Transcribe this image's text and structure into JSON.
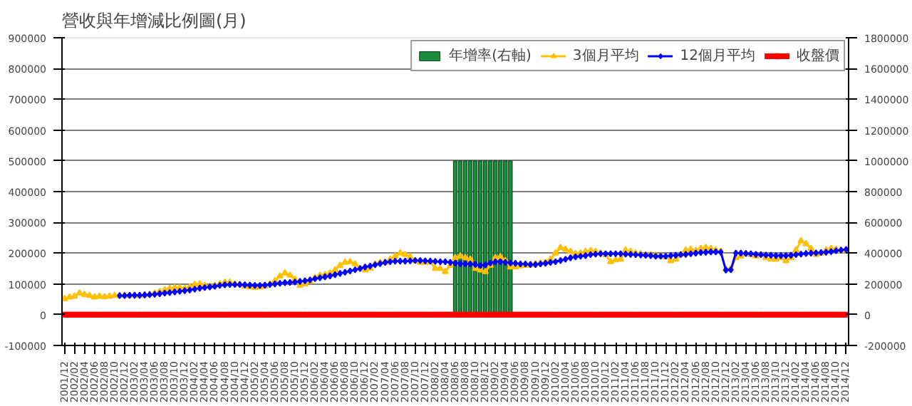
{
  "chart_data": {
    "type": "line",
    "title": "營收與年增減比例圖(月)",
    "categories": [
      "2001/12",
      null,
      "2002/02",
      null,
      "2002/04",
      null,
      "2002/06",
      null,
      "2002/08",
      null,
      "2002/10",
      null,
      "2002/12",
      null,
      "2003/02",
      null,
      "2003/04",
      null,
      "2003/06",
      null,
      "2003/08",
      null,
      "2003/10",
      null,
      "2003/12",
      null,
      "2004/02",
      null,
      "2004/04",
      null,
      "2004/06",
      null,
      "2004/08",
      null,
      "2004/10",
      null,
      "2004/12",
      null,
      "2005/02",
      null,
      "2005/04",
      null,
      "2005/06",
      null,
      "2005/08",
      null,
      "2005/10",
      null,
      "2005/12",
      null,
      "2006/02",
      null,
      "2006/04",
      null,
      "2006/06",
      null,
      "2006/08",
      null,
      "2006/10",
      null,
      "2006/12",
      null,
      "2007/02",
      null,
      "2007/04",
      null,
      "2007/06",
      null,
      "2007/08",
      null,
      "2007/10",
      null,
      "2007/12",
      null,
      "2008/02",
      null,
      "2008/04",
      null,
      "2008/06",
      null,
      "2008/08",
      null,
      "2008/10",
      null,
      "2008/12",
      null,
      "2009/02",
      null,
      "2009/04",
      null,
      "2009/06",
      null,
      "2009/08",
      null,
      "2009/10",
      null,
      "2009/12",
      null,
      "2010/02",
      null,
      "2010/04",
      null,
      "2010/06",
      null,
      "2010/08",
      null,
      "2010/10",
      null,
      "2010/12",
      null,
      "2011/02",
      null,
      "2011/04",
      null,
      "2011/06",
      null,
      "2011/08",
      null,
      "2011/10",
      null,
      "2011/12",
      null,
      "2012/02",
      null,
      "2012/04",
      null,
      "2012/06",
      null,
      "2012/08",
      null,
      "2012/10",
      null,
      "2012/12",
      null,
      "2013/02",
      null,
      "2013/04",
      null,
      "2013/06",
      null,
      "2013/08",
      null,
      "2013/10",
      null,
      "2013/12",
      null,
      "2014/02",
      null,
      "2014/04",
      null,
      "2014/06",
      null,
      "2014/08",
      null,
      "2014/10",
      null,
      "2014/12"
    ],
    "series": [
      {
        "name": "年增率(右軸)",
        "type": "bar",
        "axis": "y2",
        "color": "#1a8c3c",
        "values": [
          null,
          null,
          null,
          null,
          null,
          null,
          null,
          null,
          null,
          null,
          null,
          null,
          null,
          null,
          null,
          null,
          null,
          null,
          null,
          null,
          null,
          null,
          null,
          null,
          null,
          null,
          null,
          null,
          null,
          null,
          null,
          null,
          null,
          null,
          null,
          null,
          null,
          null,
          null,
          null,
          null,
          null,
          null,
          null,
          null,
          null,
          null,
          null,
          null,
          null,
          null,
          null,
          null,
          null,
          null,
          null,
          null,
          null,
          null,
          null,
          null,
          null,
          null,
          null,
          null,
          null,
          null,
          null,
          null,
          null,
          null,
          null,
          null,
          null,
          null,
          null,
          null,
          null,
          1000000,
          1000000,
          1000000,
          1000000,
          1000000,
          1000000,
          1000000,
          1000000,
          1000000,
          1000000,
          1000000,
          1000000,
          null,
          null,
          null,
          null,
          null,
          null,
          null,
          null,
          null,
          null,
          null,
          null,
          null,
          null,
          null,
          null,
          null,
          null,
          null,
          null,
          null,
          null,
          null,
          null,
          null,
          null,
          null,
          null,
          null,
          null,
          null,
          null,
          null,
          null,
          null,
          null,
          null,
          null,
          null,
          null,
          null,
          null,
          null,
          null,
          null,
          null,
          null,
          null,
          null,
          null,
          null,
          null,
          null,
          null,
          null,
          null,
          null,
          null,
          null,
          null,
          null,
          null,
          null,
          null,
          null,
          null,
          null
        ]
      },
      {
        "name": "3個月平均",
        "marker": "triangle",
        "color": "#ffc000",
        "values": [
          52000,
          57000,
          60000,
          70000,
          65000,
          62000,
          57000,
          60000,
          58000,
          60000,
          62000,
          62000,
          63000,
          62000,
          63000,
          62000,
          64000,
          66000,
          70000,
          75000,
          80000,
          85000,
          88000,
          88000,
          85000,
          90000,
          98000,
          100000,
          95000,
          92000,
          95000,
          100000,
          105000,
          105000,
          100000,
          98000,
          92000,
          90000,
          88000,
          90000,
          92000,
          100000,
          110000,
          125000,
          135000,
          128000,
          115000,
          95000,
          100000,
          108000,
          120000,
          128000,
          130000,
          135000,
          145000,
          160000,
          170000,
          172000,
          165000,
          150000,
          145000,
          150000,
          165000,
          170000,
          170000,
          180000,
          190000,
          200000,
          195000,
          188000,
          175000,
          170000,
          170000,
          172000,
          150000,
          150000,
          140000,
          160000,
          185000,
          190000,
          185000,
          180000,
          150000,
          145000,
          140000,
          160000,
          185000,
          188000,
          175000,
          155000,
          155000,
          158000,
          160000,
          162000,
          165000,
          168000,
          170000,
          180000,
          200000,
          218000,
          212000,
          205000,
          198000,
          200000,
          205000,
          208000,
          205000,
          200000,
          195000,
          172000,
          178000,
          180000,
          210000,
          205000,
          200000,
          198000,
          195000,
          195000,
          193000,
          190000,
          188000,
          175000,
          180000,
          195000,
          210000,
          212000,
          208000,
          215000,
          218000,
          215000,
          210000,
          205000,
          148000,
          150000,
          185000,
          190000,
          198000,
          195000,
          190000,
          195000,
          185000,
          180000,
          180000,
          185000,
          175000,
          185000,
          210000,
          240000,
          230000,
          215000,
          195000,
          200000,
          210000,
          215000,
          212000,
          208000,
          210000
        ]
      },
      {
        "name": "12個月平均",
        "marker": "diamond",
        "color": "#0000ff",
        "values": [
          null,
          null,
          null,
          null,
          null,
          null,
          null,
          null,
          null,
          null,
          null,
          62000,
          62000,
          63000,
          63000,
          63000,
          64000,
          65000,
          66000,
          68000,
          70000,
          72000,
          74000,
          76000,
          78000,
          80000,
          83000,
          86000,
          88000,
          90000,
          92000,
          95000,
          97000,
          98000,
          98000,
          98000,
          97000,
          96000,
          95000,
          95000,
          96000,
          98000,
          100000,
          102000,
          104000,
          105000,
          106000,
          108000,
          110000,
          113000,
          117000,
          120000,
          123000,
          126000,
          130000,
          134000,
          138000,
          142000,
          146000,
          150000,
          155000,
          158000,
          162000,
          166000,
          170000,
          172000,
          174000,
          174000,
          174000,
          175000,
          176000,
          176000,
          175000,
          174000,
          173000,
          172000,
          172000,
          170000,
          168000,
          166000,
          165000,
          165000,
          163000,
          160000,
          162000,
          168000,
          172000,
          172000,
          170000,
          168000,
          167000,
          165000,
          165000,
          163000,
          163000,
          165000,
          167000,
          170000,
          172000,
          176000,
          180000,
          185000,
          188000,
          190000,
          192000,
          195000,
          197000,
          198000,
          198000,
          198000,
          198000,
          198000,
          197000,
          196000,
          195000,
          194000,
          193000,
          192000,
          190000,
          190000,
          190000,
          192000,
          193000,
          195000,
          196000,
          198000,
          200000,
          202000,
          203000,
          204000,
          204000,
          203000,
          145000,
          146000,
          200000,
          200000,
          199000,
          198000,
          196000,
          195000,
          194000,
          193000,
          192000,
          192000,
          192000,
          193000,
          195000,
          197000,
          199000,
          200000,
          201000,
          202000,
          203000,
          205000,
          208000,
          210000,
          212000
        ]
      },
      {
        "name": "收盤價",
        "marker": "square",
        "color": "#ff0000",
        "values": [
          0,
          0,
          0,
          0,
          0,
          0,
          0,
          0,
          0,
          0,
          0,
          0,
          0,
          0,
          0,
          0,
          0,
          0,
          0,
          0,
          0,
          0,
          0,
          0,
          0,
          0,
          0,
          0,
          0,
          0,
          0,
          0,
          0,
          0,
          0,
          0,
          0,
          0,
          0,
          0,
          0,
          0,
          0,
          0,
          0,
          0,
          0,
          0,
          0,
          0,
          0,
          0,
          0,
          0,
          0,
          0,
          0,
          0,
          0,
          0,
          0,
          0,
          0,
          0,
          0,
          0,
          0,
          0,
          0,
          0,
          0,
          0,
          0,
          0,
          0,
          0,
          0,
          0,
          0,
          0,
          0,
          0,
          0,
          0,
          0,
          0,
          0,
          0,
          0,
          0,
          0,
          0,
          0,
          0,
          0,
          0,
          0,
          0,
          0,
          0,
          0,
          0,
          0,
          0,
          0,
          0,
          0,
          0,
          0,
          0,
          0,
          0,
          0,
          0,
          0,
          0,
          0,
          0,
          0,
          0,
          0,
          0,
          0,
          0,
          0,
          0,
          0,
          0,
          0,
          0,
          0,
          0,
          0,
          0,
          0,
          0,
          0,
          0,
          0,
          0,
          0,
          0,
          0,
          0,
          0,
          0,
          0,
          0,
          0,
          0,
          0,
          0,
          0,
          0,
          0,
          0,
          0
        ]
      }
    ],
    "ylim": [
      -100000,
      900000
    ],
    "yticks": [
      -100000,
      0,
      100000,
      200000,
      300000,
      400000,
      500000,
      600000,
      700000,
      800000,
      900000
    ],
    "y2lim": [
      -200000,
      1800000
    ],
    "y2ticks": [
      -200000,
      0,
      200000,
      400000,
      600000,
      800000,
      1000000,
      1200000,
      1400000,
      1600000,
      1800000
    ],
    "grid": "y",
    "legend": "top right"
  }
}
